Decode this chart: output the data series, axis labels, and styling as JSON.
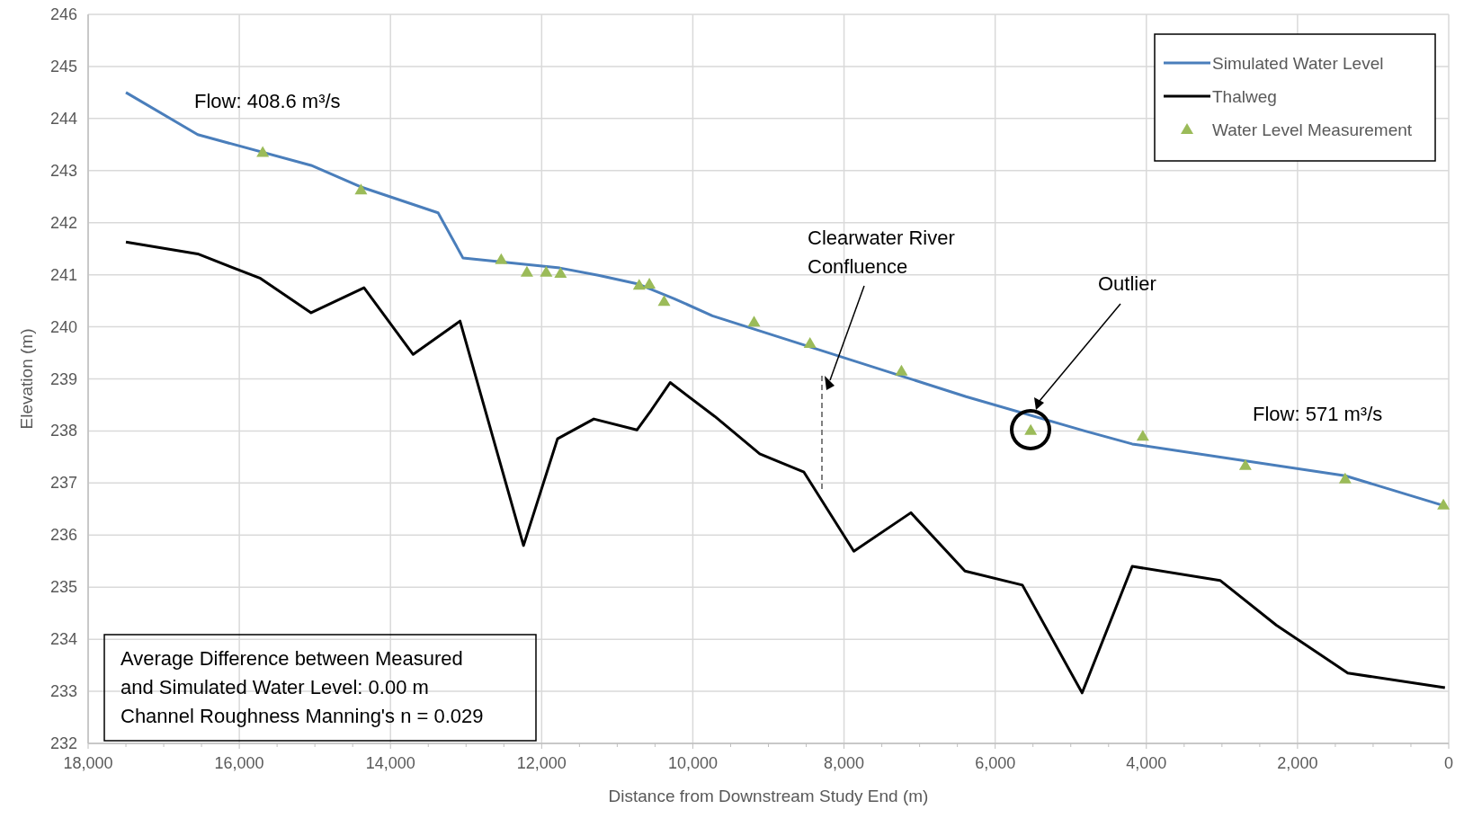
{
  "chart_data": {
    "type": "line",
    "xlabel": "Distance from Downstream Study End (m)",
    "ylabel": "Elevation (m)",
    "xlim": [
      18000,
      0
    ],
    "xticks": [
      {
        "value": 18000,
        "label": "18,000"
      },
      {
        "value": 16000,
        "label": "16,000"
      },
      {
        "value": 14000,
        "label": "14,000"
      },
      {
        "value": 12000,
        "label": "12,000"
      },
      {
        "value": 10000,
        "label": "10,000"
      },
      {
        "value": 8000,
        "label": "8,000"
      },
      {
        "value": 6000,
        "label": "6,000"
      },
      {
        "value": 4000,
        "label": "4,000"
      },
      {
        "value": 2000,
        "label": "2,000"
      },
      0
    ],
    "ylim": [
      232,
      246
    ],
    "yticks": [
      232,
      233,
      234,
      235,
      236,
      237,
      238,
      239,
      240,
      241,
      242,
      243,
      244,
      245,
      246
    ],
    "grid": true,
    "legend": "top right",
    "series": [
      {
        "name": "Simulated Water Level",
        "color": "#4a7ebb",
        "marker": "none",
        "x": [
          17500,
          16550,
          15050,
          14400,
          13370,
          13040,
          11760,
          11250,
          10720,
          10245,
          9740,
          6385,
          4817,
          4187,
          1370,
          100
        ],
        "values": [
          244.5,
          243.69,
          243.1,
          242.69,
          242.19,
          241.32,
          241.13,
          240.99,
          240.82,
          240.54,
          240.21,
          238.66,
          238.0,
          237.75,
          237.14,
          236.58
        ]
      },
      {
        "name": "Thalweg",
        "color": "#000000",
        "marker": "none",
        "x": [
          17500,
          16550,
          15720,
          15050,
          14350,
          13700,
          13080,
          12240,
          11790,
          11310,
          10740,
          10550,
          10300,
          9710,
          9115,
          8530,
          7870,
          7115,
          6400,
          5640,
          4850,
          4187,
          3025,
          2280,
          1335,
          50
        ],
        "values": [
          241.63,
          241.4,
          240.93,
          240.27,
          240.75,
          239.47,
          240.11,
          235.8,
          237.85,
          238.23,
          238.02,
          238.4,
          238.93,
          238.28,
          237.56,
          237.21,
          235.69,
          236.43,
          235.31,
          235.04,
          232.97,
          235.4,
          235.13,
          234.27,
          233.35,
          233.07
        ]
      },
      {
        "name": "Water Level Measurement",
        "type": "scatter",
        "color": "#9bbb59",
        "marker": "triangle",
        "x": [
          15690,
          14390,
          12535,
          12195,
          11940,
          11750,
          10710,
          10575,
          10380,
          9190,
          8450,
          7240,
          5530,
          4047,
          2690,
          1370,
          70
        ],
        "values": [
          243.35,
          242.63,
          241.29,
          241.05,
          241.05,
          241.03,
          240.8,
          240.82,
          240.49,
          240.09,
          239.68,
          239.15,
          238.01,
          237.9,
          237.34,
          237.08,
          236.58
        ]
      }
    ],
    "annotations": [
      "Flow: 408.6 m³/s",
      "Flow: 571 m³/s",
      "Clearwater River Confluence",
      "Outlier",
      "Average Difference between Measured and Simulated Water Level: 0.00 m\nChannel Roughness Manning's n = 0.029"
    ]
  }
}
